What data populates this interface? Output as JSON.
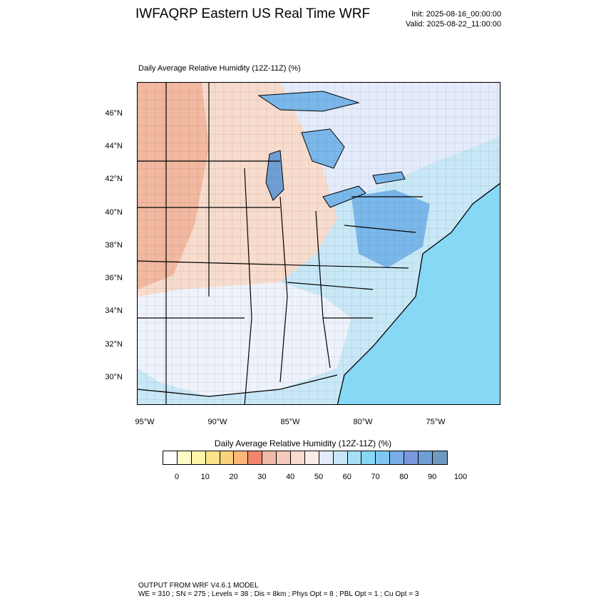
{
  "header": {
    "title": "IWFAQRP Eastern US Real Time WRF",
    "init": "Init: 2025-08-16_00:00:00",
    "valid": "Valid: 2025-08-22_11:00:00"
  },
  "map": {
    "title": "Daily Average Relative Humidity (12Z-11Z)   (%)",
    "lat_labels": [
      "46°N",
      "44°N",
      "42°N",
      "40°N",
      "38°N",
      "36°N",
      "34°N",
      "32°N",
      "30°N"
    ],
    "lon_labels": [
      "95°W",
      "90°W",
      "85°W",
      "80°W",
      "75°W"
    ],
    "colors": {
      "dry": "#f2b8a0",
      "moderate": "#f7dccd",
      "neutral": "#ffffff",
      "moist": "#c9e8f7",
      "wet": "#86d8f5",
      "very_wet": "#7ab7ea",
      "saturated": "#6f9ed4"
    }
  },
  "colorbar": {
    "title": "Daily Average Relative Humidity (12Z-11Z)  (%)",
    "colors": [
      "#ffffff",
      "#fffbc8",
      "#fff3a8",
      "#fde38a",
      "#fcd17c",
      "#fbb77a",
      "#f3876c",
      "#f2b8a8",
      "#f5c9bb",
      "#f7dccf",
      "#fbece6",
      "#e4ebfb",
      "#c9e8f7",
      "#a6e0f5",
      "#86d8f5",
      "#7fc7f1",
      "#7aaee9",
      "#7a98e0",
      "#6f9ed4",
      "#6f9ac0"
    ],
    "ticks": [
      "0",
      "10",
      "20",
      "30",
      "40",
      "50",
      "60",
      "70",
      "80",
      "90",
      "100"
    ]
  },
  "footer": {
    "line1": "OUTPUT FROM WRF V4.6.1 MODEL",
    "line2": "WE = 310 ; SN = 275 ; Levels = 38 ; Dis = 8km ; Phys Opt = 8 ; PBL Opt = 1 ; Cu Opt = 3"
  }
}
